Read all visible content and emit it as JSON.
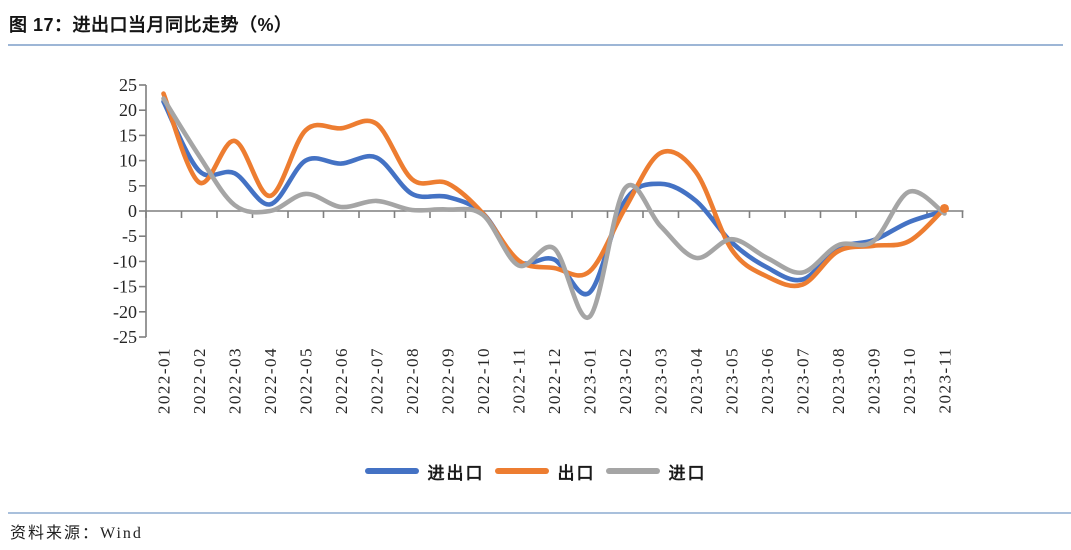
{
  "header": {
    "title": "图 17：进出口当月同比走势（%）"
  },
  "footer": {
    "source": "资料来源：Wind"
  },
  "colors": {
    "total_line": "#4472C4",
    "export_line": "#ED7D31",
    "import_line": "#A5A5A5",
    "axis": "#7f7f7f",
    "divider": "#9db6d6",
    "text": "#262626"
  },
  "chart_data": {
    "type": "line",
    "title": "进出口当月同比走势（%）",
    "xlabel": "",
    "ylabel": "",
    "ylim": [
      -25,
      25
    ],
    "ytick_step": 5,
    "ytick_labels": [
      "25",
      "20",
      "15",
      "10",
      "5",
      "0",
      "-5",
      "-10",
      "-15",
      "-20",
      "-25"
    ],
    "grid": false,
    "legend_position": "bottom",
    "categories": [
      "2022-01",
      "2022-02",
      "2022-03",
      "2022-04",
      "2022-05",
      "2022-06",
      "2022-07",
      "2022-08",
      "2022-09",
      "2022-10",
      "2022-11",
      "2022-12",
      "2023-01",
      "2023-02",
      "2023-03",
      "2023-04",
      "2023-05",
      "2023-06",
      "2023-07",
      "2023-08",
      "2023-09",
      "2023-10",
      "2023-11"
    ],
    "series": [
      {
        "name": "进出口",
        "key": "total",
        "color": "#4472C4",
        "values": [
          21.7,
          8.0,
          7.5,
          1.3,
          10.0,
          9.4,
          10.6,
          3.4,
          2.8,
          -0.5,
          -10.0,
          -9.6,
          -16.2,
          2.0,
          5.4,
          2.0,
          -6.2,
          -11.2,
          -13.6,
          -7.4,
          -5.8,
          -2.2,
          0.0
        ]
      },
      {
        "name": "出口",
        "key": "export",
        "color": "#ED7D31",
        "values": [
          23.3,
          5.7,
          13.9,
          3.0,
          16.0,
          16.4,
          17.3,
          6.3,
          5.5,
          -0.5,
          -9.8,
          -11.3,
          -12.0,
          0.5,
          11.5,
          7.7,
          -7.6,
          -13.0,
          -14.6,
          -8.0,
          -6.9,
          -6.0,
          0.5
        ]
      },
      {
        "name": "进口",
        "key": "import",
        "color": "#A5A5A5",
        "values": [
          22.3,
          11.0,
          1.2,
          0.0,
          3.4,
          0.8,
          2.0,
          0.2,
          0.3,
          -0.8,
          -10.8,
          -7.4,
          -21.0,
          4.5,
          -3.0,
          -9.3,
          -5.6,
          -9.3,
          -12.2,
          -6.8,
          -6.0,
          3.8,
          -0.5
        ]
      }
    ],
    "end_marker": {
      "series": "出口",
      "category": "2023-11",
      "value": 0.5
    }
  }
}
